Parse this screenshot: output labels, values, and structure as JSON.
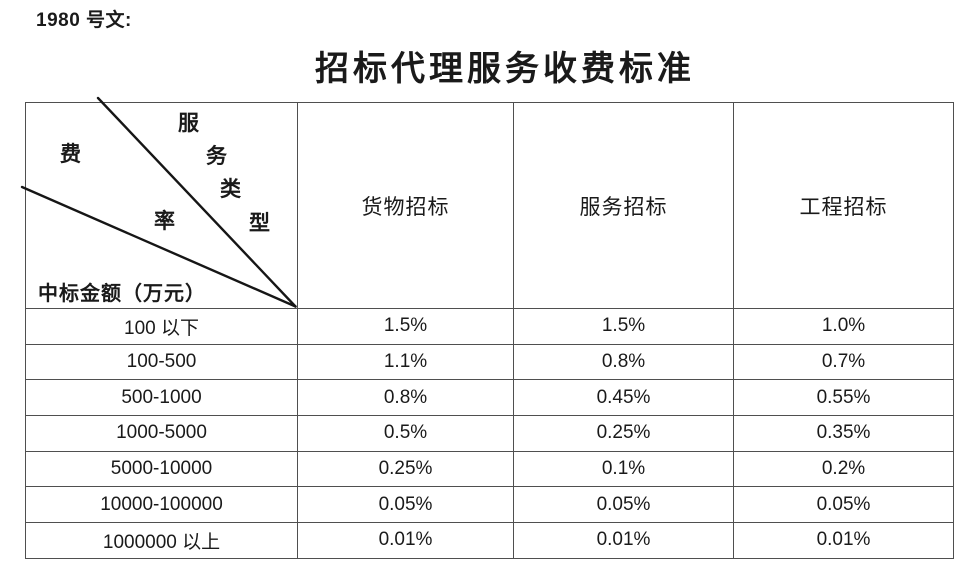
{
  "page": {
    "doc_ref": "1980 号文:",
    "title": "招标代理服务收费标准"
  },
  "theme": {
    "background": "#ffffff",
    "text_color": "#1a1a1a",
    "border_color": "#4f4f4f",
    "diagonal_line_color": "#161616"
  },
  "table": {
    "corner": {
      "fee_chars": [
        "费",
        "率"
      ],
      "service_type_chars": [
        "服",
        "务",
        "类",
        "型"
      ],
      "amount_label": "中标金额（万元）"
    },
    "columns": [
      "货物招标",
      "服务招标",
      "工程招标"
    ],
    "row_keys": [
      "range",
      "goods",
      "service",
      "engineering"
    ],
    "rows": [
      {
        "range": "100 以下",
        "goods": "1.5%",
        "service": "1.5%",
        "engineering": "1.0%"
      },
      {
        "range": "100-500",
        "goods": "1.1%",
        "service": "0.8%",
        "engineering": "0.7%"
      },
      {
        "range": "500-1000",
        "goods": "0.8%",
        "service": "0.45%",
        "engineering": "0.55%"
      },
      {
        "range": "1000-5000",
        "goods": "0.5%",
        "service": "0.25%",
        "engineering": "0.35%"
      },
      {
        "range": "5000-10000",
        "goods": "0.25%",
        "service": "0.1%",
        "engineering": "0.2%"
      },
      {
        "range": "10000-100000",
        "goods": "0.05%",
        "service": "0.05%",
        "engineering": "0.05%"
      },
      {
        "range": "1000000 以上",
        "goods": "0.01%",
        "service": "0.01%",
        "engineering": "0.01%"
      }
    ]
  }
}
